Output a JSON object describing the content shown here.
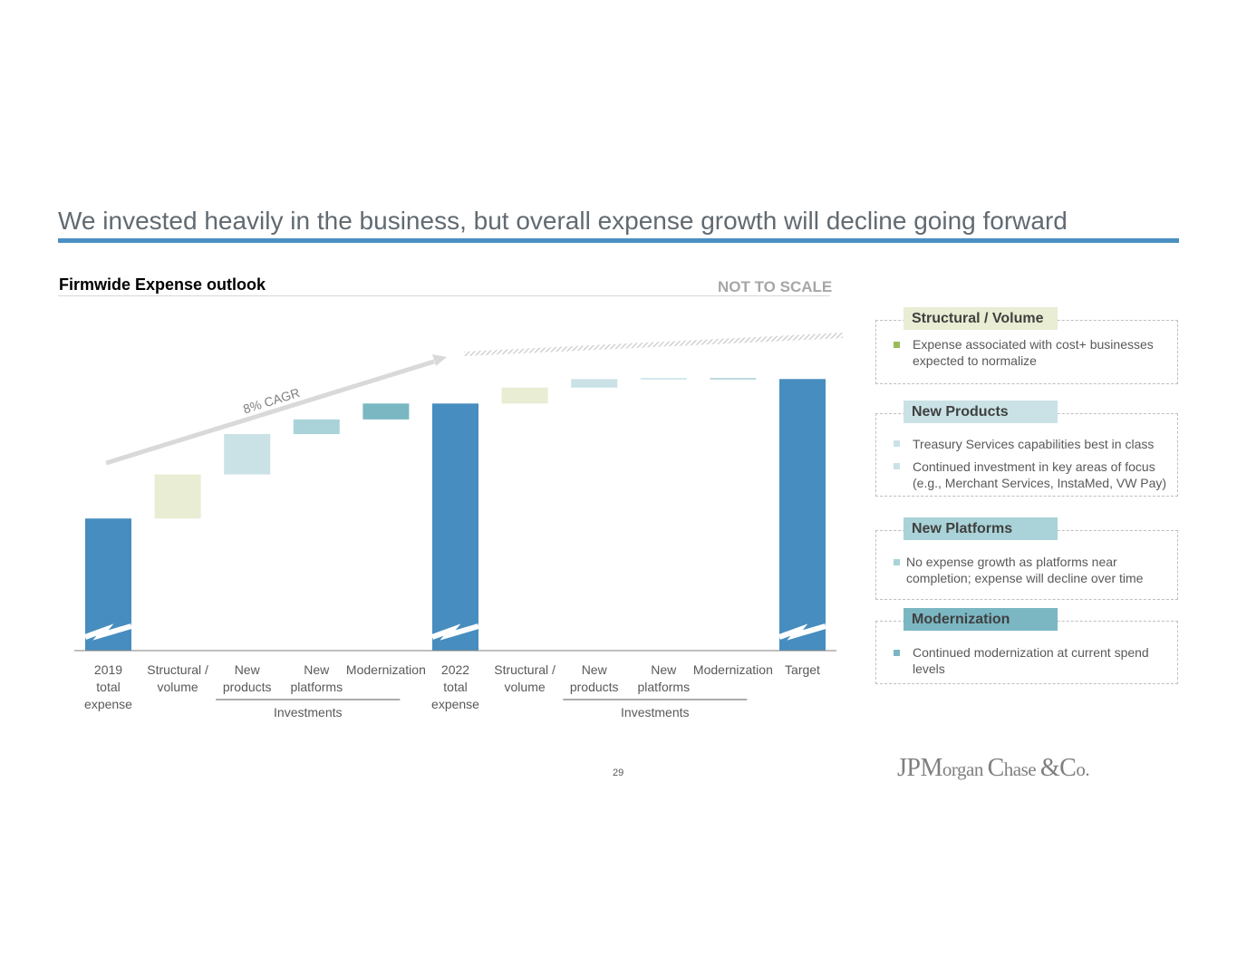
{
  "slide": {
    "title": "We invested heavily in the business, but overall expense growth will decline going forward",
    "chart_heading": "Firmwide Expense outlook",
    "scale_note": "NOT TO SCALE",
    "page_number": "29",
    "logo": {
      "letters": [
        "J",
        "P",
        "M",
        "organ ",
        "C",
        "hase ",
        "&",
        "C",
        "o."
      ],
      "text": "JPMorgan Chase & Co."
    }
  },
  "chart_data": {
    "type": "bar",
    "subtype": "waterfall",
    "title": "Firmwide Expense outlook",
    "note": "NOT TO SCALE",
    "axis_break": true,
    "ylim": [
      0,
      100
    ],
    "categories": [
      [
        "2019",
        "total",
        "expense"
      ],
      [
        "Structural /",
        "volume"
      ],
      [
        "New",
        "products"
      ],
      [
        "New",
        "platforms"
      ],
      [
        "Modernization"
      ],
      [
        "2022",
        "total",
        "expense"
      ],
      [
        "Structural /",
        "volume"
      ],
      [
        "New",
        "products"
      ],
      [
        "New",
        "platforms"
      ],
      [
        "Modernization"
      ],
      [
        "Target"
      ]
    ],
    "bars": [
      {
        "kind": "total",
        "start": 0,
        "end": 54,
        "color": "#478dbf"
      },
      {
        "kind": "delta",
        "start": 54,
        "end": 72,
        "color": "#e8edd3"
      },
      {
        "kind": "delta",
        "start": 72,
        "end": 88.5,
        "color": "#cae2e6"
      },
      {
        "kind": "delta",
        "start": 88.5,
        "end": 94.5,
        "color": "#a9d3d8"
      },
      {
        "kind": "delta",
        "start": 94.5,
        "end": 101,
        "color": "#7ab7c2"
      },
      {
        "kind": "total",
        "start": 0,
        "end": 101,
        "color": "#478dbf"
      },
      {
        "kind": "delta",
        "start": 101,
        "end": 107.5,
        "color": "#e8edd3"
      },
      {
        "kind": "delta",
        "start": 107.5,
        "end": 111,
        "color": "#cae2e6"
      },
      {
        "kind": "delta",
        "start": 111,
        "end": 111.3,
        "color": "#a9d3d8"
      },
      {
        "kind": "delta",
        "start": 111,
        "end": 111.3,
        "color": "#7ab7c2"
      },
      {
        "kind": "total",
        "start": 0,
        "end": 111,
        "color": "#478dbf"
      }
    ],
    "groups": [
      {
        "label": "Investments",
        "from": 2,
        "to": 4
      },
      {
        "label": "Investments",
        "from": 7,
        "to": 9
      }
    ],
    "annotations": [
      {
        "text": "8% CAGR",
        "from": 0,
        "to": 5,
        "style": "solid-arrow"
      },
      {
        "text": "",
        "from": 5,
        "to": 10,
        "style": "hatched-arrow"
      }
    ]
  },
  "legend": [
    {
      "title": "Structural / Volume",
      "tag_color": "#e8edd3",
      "bullet_color": "#9bbb59",
      "items": [
        [
          "Expense associated with cost+ businesses",
          "expected to normalize"
        ]
      ]
    },
    {
      "title": "New Products",
      "tag_color": "#cae2e6",
      "bullet_color": "#cae2e6",
      "items": [
        [
          "Treasury Services capabilities best in class"
        ],
        [
          "Continued investment in key areas of focus",
          "(e.g., Merchant Services, InstaMed, VW Pay)"
        ]
      ]
    },
    {
      "title": "New Platforms",
      "tag_color": "#a9d3d8",
      "bullet_color": "#a9d3d8",
      "items": [
        [
          "No expense growth as platforms near",
          "completion; expense will decline over time"
        ]
      ]
    },
    {
      "title": "Modernization",
      "tag_color": "#7ab7c2",
      "bullet_color": "#7ab7c2",
      "items": [
        [
          "Continued modernization at current spend",
          "levels"
        ]
      ]
    }
  ]
}
